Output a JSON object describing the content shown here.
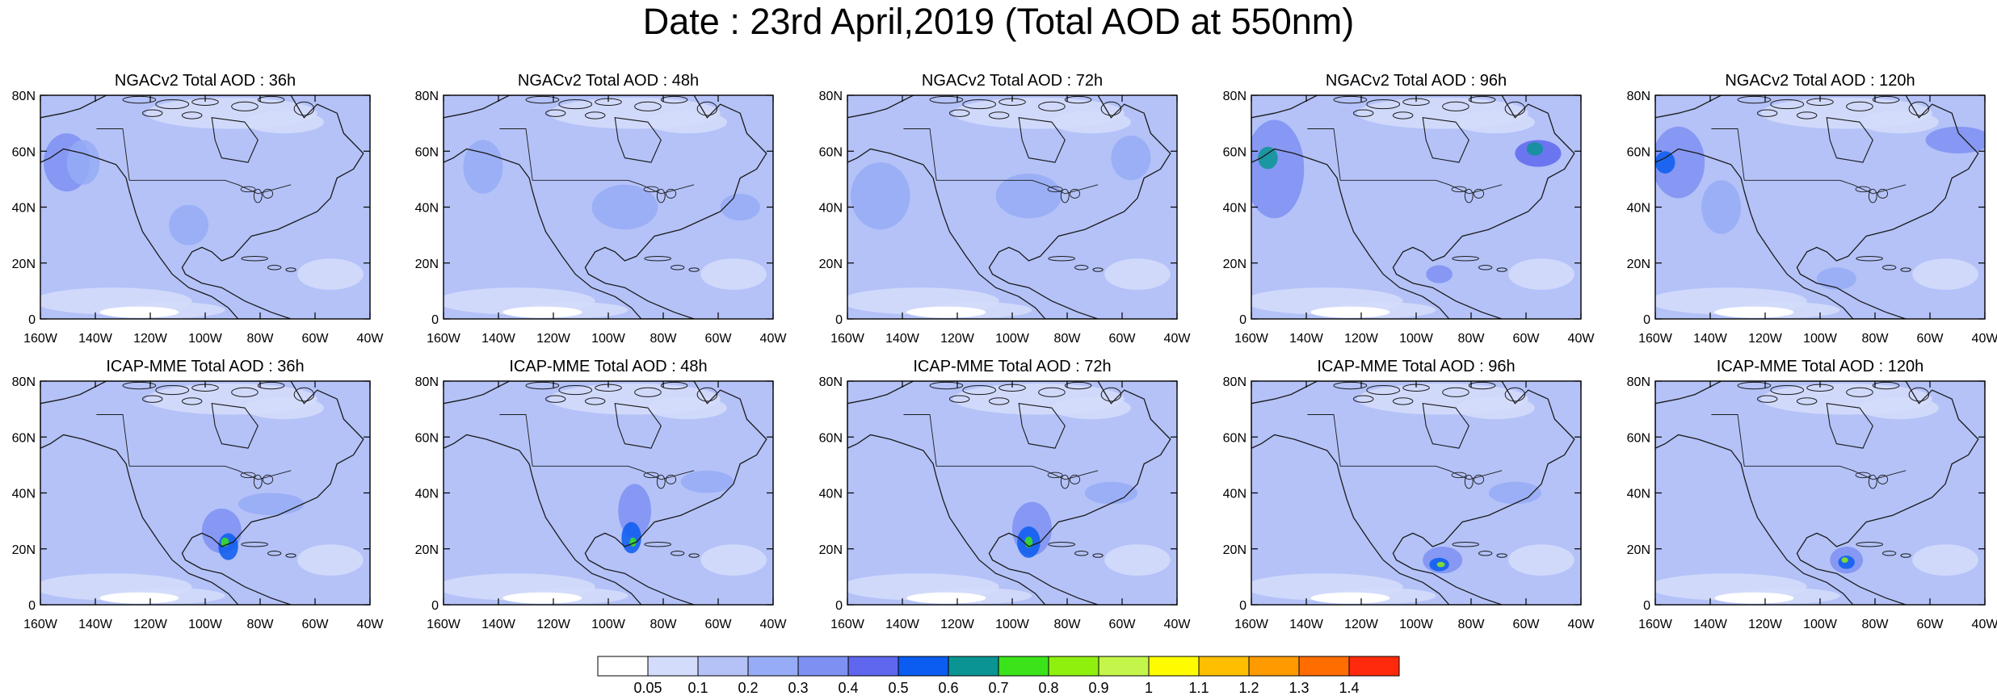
{
  "title": "Date : 23rd April,2019 (Total AOD at 550nm)",
  "ylabels": [
    "80N",
    "60N",
    "40N",
    "20N",
    "0"
  ],
  "xlabels": [
    "160W",
    "140W",
    "120W",
    "100W",
    "80W",
    "60W",
    "40W"
  ],
  "panels": [
    {
      "title": "NGACv2 Total AOD : 36h",
      "model": "NGACv2",
      "lead": "36h"
    },
    {
      "title": "NGACv2 Total AOD : 48h",
      "model": "NGACv2",
      "lead": "48h"
    },
    {
      "title": "NGACv2 Total AOD : 72h",
      "model": "NGACv2",
      "lead": "72h"
    },
    {
      "title": "NGACv2 Total AOD : 96h",
      "model": "NGACv2",
      "lead": "96h"
    },
    {
      "title": "NGACv2 Total AOD : 120h",
      "model": "NGACv2",
      "lead": "120h"
    },
    {
      "title": "ICAP-MME Total AOD : 36h",
      "model": "ICAP-MME",
      "lead": "36h"
    },
    {
      "title": "ICAP-MME Total AOD : 48h",
      "model": "ICAP-MME",
      "lead": "48h"
    },
    {
      "title": "ICAP-MME Total AOD : 72h",
      "model": "ICAP-MME",
      "lead": "72h"
    },
    {
      "title": "ICAP-MME Total AOD : 96h",
      "model": "ICAP-MME",
      "lead": "96h"
    },
    {
      "title": "ICAP-MME Total AOD : 120h",
      "model": "ICAP-MME",
      "lead": "120h"
    }
  ],
  "colorbar": {
    "colors": [
      "#ffffff",
      "#d4dcfb",
      "#b4c2f8",
      "#97acf6",
      "#7e90f2",
      "#5f67ee",
      "#0b5cf0",
      "#0a9594",
      "#3be31a",
      "#8ff00e",
      "#c4f54a",
      "#fffc00",
      "#ffbf00",
      "#ff9a00",
      "#ff6c00",
      "#ff2a0c"
    ],
    "labels": [
      "0.05",
      "0.1",
      "0.2",
      "0.3",
      "0.4",
      "0.5",
      "0.6",
      "0.7",
      "0.8",
      "0.9",
      "1",
      "1.1",
      "1.2",
      "1.3",
      "1.4"
    ]
  }
}
